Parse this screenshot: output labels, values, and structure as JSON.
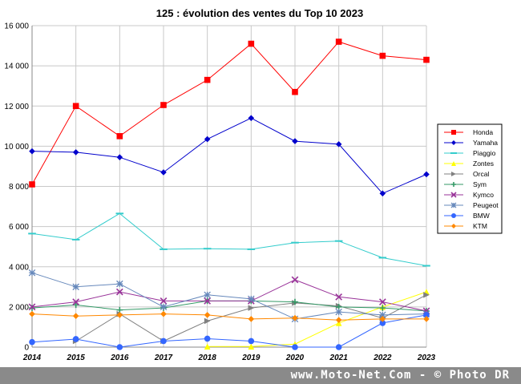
{
  "chart_data": {
    "type": "line",
    "title": "125 : évolution des ventes du Top 10 2023",
    "xlabel": "",
    "ylabel": "",
    "x": [
      "2014",
      "2015",
      "2016",
      "2017",
      "2018",
      "2019",
      "2020",
      "2021",
      "2022",
      "2023"
    ],
    "ylim": [
      0,
      16000
    ],
    "yticks": [
      0,
      2000,
      4000,
      6000,
      8000,
      10000,
      12000,
      14000,
      16000
    ],
    "ytick_labels": [
      "0",
      "2 000",
      "4 000",
      "6 000",
      "8 000",
      "10 000",
      "12 000",
      "14 000",
      "16 000"
    ],
    "grid": true,
    "legend_position": "right",
    "series": [
      {
        "name": "Honda",
        "color": "#ff0000",
        "marker": "square",
        "values": [
          8100,
          12000,
          10500,
          12050,
          13300,
          15100,
          12700,
          15200,
          14500,
          14300
        ]
      },
      {
        "name": "Yamaha",
        "color": "#0000cc",
        "marker": "diamond",
        "values": [
          9750,
          9700,
          9450,
          8700,
          10350,
          11400,
          10250,
          10100,
          7650,
          8600
        ]
      },
      {
        "name": "Piaggio",
        "color": "#33cccc",
        "marker": "dash",
        "values": [
          5650,
          5350,
          6650,
          4870,
          4900,
          4870,
          5200,
          5280,
          4450,
          4050
        ]
      },
      {
        "name": "Zontes",
        "color": "#ffff00",
        "marker": "triangle",
        "values": [
          null,
          null,
          null,
          null,
          30,
          30,
          150,
          1200,
          2000,
          2750
        ]
      },
      {
        "name": "Orcal",
        "color": "#808080",
        "marker": "tri-right",
        "values": [
          null,
          300,
          1650,
          300,
          1300,
          1950,
          2200,
          2050,
          1450,
          2600
        ]
      },
      {
        "name": "Sym",
        "color": "#339966",
        "marker": "plus",
        "values": [
          1950,
          2100,
          1850,
          1950,
          2300,
          2300,
          2250,
          2000,
          1950,
          1800
        ]
      },
      {
        "name": "Kymco",
        "color": "#993399",
        "marker": "x",
        "values": [
          2000,
          2250,
          2750,
          2300,
          2300,
          2300,
          3350,
          2500,
          2250,
          1800
        ]
      },
      {
        "name": "Peugeot",
        "color": "#6688bb",
        "marker": "star",
        "values": [
          3700,
          3000,
          3150,
          2000,
          2600,
          2400,
          1400,
          1750,
          1600,
          1650
        ]
      },
      {
        "name": "BMW",
        "color": "#3366ff",
        "marker": "circle",
        "values": [
          250,
          400,
          0,
          300,
          420,
          300,
          0,
          0,
          1200,
          1600
        ]
      },
      {
        "name": "KTM",
        "color": "#ff8800",
        "marker": "diamond",
        "values": [
          1650,
          1550,
          1600,
          1650,
          1600,
          1400,
          1450,
          1350,
          1400,
          1400
        ]
      }
    ]
  },
  "footer": {
    "text": "www.Moto-Net.Com - © Photo DR"
  }
}
